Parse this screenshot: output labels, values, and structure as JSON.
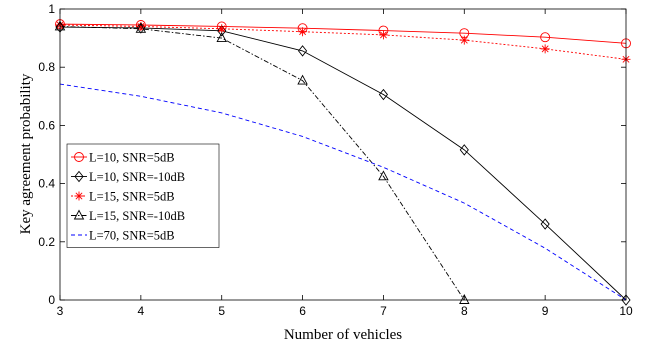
{
  "chart_data": {
    "type": "line",
    "xlabel": "Number of vehicles",
    "ylabel": "Key agreement probability",
    "xlim": [
      3,
      10
    ],
    "ylim": [
      0,
      1
    ],
    "xticks": [
      3,
      4,
      5,
      6,
      7,
      8,
      9,
      10
    ],
    "yticks": [
      0,
      0.2,
      0.4,
      0.6,
      0.8,
      1
    ],
    "ytick_labels": [
      "0",
      "0.2",
      "0.4",
      "0.6",
      "0.8",
      "1"
    ],
    "grid": false,
    "legend_position": "middle-left",
    "series": [
      {
        "name": "L=10, SNR=5dB",
        "color": "#ff0000",
        "line": "solid",
        "marker": "circle",
        "x": [
          3,
          4,
          5,
          6,
          7,
          8,
          9,
          10
        ],
        "y": [
          0.948,
          0.945,
          0.94,
          0.934,
          0.926,
          0.917,
          0.903,
          0.882
        ]
      },
      {
        "name": "L=10, SNR=-10dB",
        "color": "#000000",
        "line": "solid",
        "marker": "diamond",
        "x": [
          3,
          4,
          5,
          6,
          7,
          8,
          9,
          10
        ],
        "y": [
          0.938,
          0.935,
          0.925,
          0.856,
          0.706,
          0.516,
          0.261,
          0.0
        ]
      },
      {
        "name": "L=15, SNR=5dB",
        "color": "#ff0000",
        "line": "dotted",
        "marker": "asterisk",
        "x": [
          3,
          4,
          5,
          6,
          7,
          8,
          9,
          10
        ],
        "y": [
          0.945,
          0.94,
          0.932,
          0.922,
          0.911,
          0.893,
          0.863,
          0.827
        ]
      },
      {
        "name": "L=15, SNR=-10dB",
        "color": "#000000",
        "line": "dashdot",
        "marker": "triangle",
        "x": [
          3,
          4,
          5,
          6,
          7,
          8
        ],
        "y": [
          0.94,
          0.932,
          0.9,
          0.754,
          0.425,
          0.0
        ]
      },
      {
        "name": "L=70, SNR=5dB",
        "color": "#0000ff",
        "line": "dashed",
        "marker": "none",
        "x": [
          3,
          4,
          5,
          6,
          7,
          8,
          9,
          10
        ],
        "y": [
          0.742,
          0.7,
          0.643,
          0.562,
          0.456,
          0.333,
          0.178,
          0.0
        ]
      }
    ]
  }
}
